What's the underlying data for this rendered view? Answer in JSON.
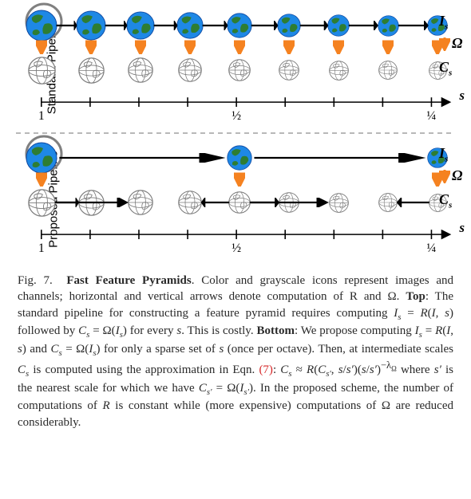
{
  "figure_number": "Fig. 7.",
  "figure_title": "Fast Feature Pyramids",
  "panels": {
    "standard": {
      "label": "Standard Pipeline",
      "slots": 9,
      "color_globes": [
        0,
        1,
        2,
        3,
        4,
        5,
        6,
        7,
        8
      ],
      "gray_globes": [
        0,
        1,
        2,
        3,
        4,
        5,
        6,
        7,
        8
      ],
      "omega_arrows": [
        0,
        1,
        2,
        3,
        4,
        5,
        6,
        7,
        8
      ],
      "horizontal_img_arrows": [
        [
          0,
          1
        ],
        [
          1,
          2
        ],
        [
          2,
          3
        ],
        [
          3,
          4
        ],
        [
          4,
          5
        ],
        [
          5,
          6
        ],
        [
          6,
          7
        ],
        [
          7,
          8
        ]
      ],
      "horizontal_chan_arrows": [],
      "circle_at": 0
    },
    "proposed": {
      "label": "Proposed Pipeline",
      "slots": 9,
      "color_globes": [
        0,
        4,
        8
      ],
      "gray_globes": [
        0,
        1,
        2,
        3,
        4,
        5,
        6,
        7,
        8
      ],
      "omega_arrows": [
        0,
        4,
        8
      ],
      "horizontal_img_arrows": [
        [
          0,
          4
        ],
        [
          4,
          8
        ]
      ],
      "horizontal_chan_arrows": [
        [
          0,
          1
        ],
        [
          0,
          2
        ],
        [
          4,
          3
        ],
        [
          4,
          5
        ],
        [
          4,
          6
        ],
        [
          8,
          7
        ]
      ],
      "circle_at": 0
    }
  },
  "globe_sizes": [
    40,
    38,
    36,
    34,
    32,
    30,
    28,
    27,
    26
  ],
  "axis": {
    "ticks_at": [
      0,
      1,
      2,
      3,
      4,
      5,
      6,
      7,
      8
    ],
    "labels": [
      {
        "at": 0,
        "text": "1"
      },
      {
        "at": 4,
        "text": "½"
      },
      {
        "at": 8,
        "text": "¼"
      }
    ],
    "var_label": "s"
  },
  "legend": {
    "Is": "I",
    "Isub": "s",
    "Omega": "Ω",
    "Cs": "C",
    "Csub": "s"
  },
  "colors": {
    "arrow_black": "#000000",
    "arrow_orange": "#f58220",
    "globe_land": "#2e7d32",
    "globe_sea": "#1e88e5",
    "globe_gray_line": "#7a7a7a",
    "circle": "#808080",
    "divider": "#a0a0a0",
    "red": "#d62728"
  },
  "caption": {
    "pre": ". Color and grayscale icons represent images and channels; horizontal and vertical arrows denote computation of ",
    "R": "R",
    "and": " and ",
    "Omega": "Ω",
    "top_label": "Top",
    "top_text": ": The standard pipeline for constructing a feature pyramid requires computing ",
    "eq1": "I_s = R(I, s)",
    "mid1": " followed by ",
    "eq2": "C_s = Ω(I_s)",
    "mid2": " for every ",
    "s": "s",
    "mid3": ". This is costly. ",
    "bottom_label": "Bottom",
    "bottom_text": ": We propose computing ",
    "eq3": "I_s = R(I, s)",
    "and2": " and ",
    "eq4": "C_s = Ω(I_s)",
    "sparse": " for only a sparse set of ",
    "sparse2": " (once per octave). Then, at intermediate scales ",
    "Cs": "C_s",
    "approx_pre": " is computed using the approximation in Eqn. ",
    "eqn_no": "(7)",
    "approx": ": ",
    "eq5": "C_s ≈ R(C_{s'}, s/s')(s/s')^{-λΩ}",
    "where": " where ",
    "sprime": "s′",
    "tail1": " is the nearest scale for which we have ",
    "eq6": "C_{s'} = Ω(I_{s'})",
    "tail2": ". In the proposed scheme, the number of computations of ",
    "R2": "R",
    "tail3": " is constant while (more expensive) computations of ",
    "Omega2": "Ω",
    "tail4": " are reduced considerably."
  }
}
